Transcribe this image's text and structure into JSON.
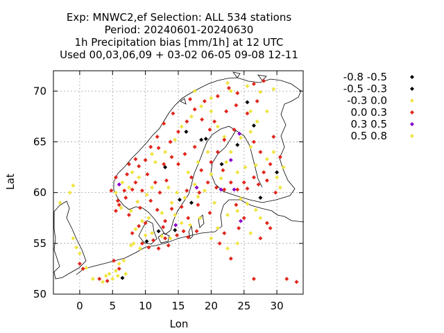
{
  "chart_data": {
    "type": "scatter",
    "title_lines": [
      "Exp: MNWC2,ef   Selection: ALL     534 stations",
      "Period: 20240601-20240630",
      "1h Precipitation bias [mm/1h] at  12 UTC",
      "Used 00,03,06,09 + 03-02 06-05 09-08 12-11"
    ],
    "xlabel": "Lon",
    "ylabel": "Lat",
    "xlim": [
      -4,
      34
    ],
    "ylim": [
      50,
      72
    ],
    "xticks": [
      "0",
      "5",
      "10",
      "15",
      "20",
      "25",
      "30"
    ],
    "yticks": [
      "50",
      "55",
      "60",
      "65",
      "70"
    ],
    "grid": true,
    "legend_position": "top-right",
    "legend": [
      {
        "label": "-0.8 -0.5",
        "color": "#000000"
      },
      {
        "label": "-0.5 -0.3",
        "color": "#000000"
      },
      {
        "label": "-0.3 0.0",
        "color": "#f0e442"
      },
      {
        "label": "0.0 0.3",
        "color": "#e1261c"
      },
      {
        "label": "0.3 0.5",
        "color": "#8b00c9"
      },
      {
        "label": "0.5 0.8",
        "color": "#f0e442"
      }
    ],
    "series": [
      {
        "name": "-0.8 -0.5",
        "color": "#000000",
        "points": [
          [
            16.2,
            66.0
          ],
          [
            18.5,
            65.2
          ],
          [
            26.5,
            66.6
          ],
          [
            25.5,
            68.9
          ],
          [
            24.0,
            64.7
          ],
          [
            13.0,
            62.5
          ],
          [
            30.0,
            62.0
          ],
          [
            6.5,
            51.6
          ]
        ]
      },
      {
        "name": "-0.5 -0.3",
        "color": "#000000",
        "points": [
          [
            14.5,
            56.3
          ],
          [
            15.2,
            59.3
          ],
          [
            17.0,
            59.0
          ],
          [
            21.6,
            62.8
          ],
          [
            19.2,
            65.3
          ],
          [
            27.5,
            59.5
          ],
          [
            12.0,
            56.2
          ],
          [
            10.2,
            55.2
          ]
        ]
      },
      {
        "name": "-0.3 0.0",
        "color": "#f0e442",
        "points": [
          [
            -1.5,
            60.0
          ],
          [
            -1.0,
            60.7
          ],
          [
            -3.0,
            59.0
          ],
          [
            -1.0,
            55.5
          ],
          [
            -0.5,
            54.6
          ],
          [
            0.0,
            54.0
          ],
          [
            1.0,
            52.6
          ],
          [
            4.5,
            52.0
          ],
          [
            5.0,
            51.5
          ],
          [
            5.5,
            52.3
          ],
          [
            6.0,
            53.0
          ],
          [
            6.7,
            53.3
          ],
          [
            5.8,
            51.8
          ],
          [
            3.5,
            51.2
          ],
          [
            8.2,
            55.0
          ],
          [
            8.5,
            56.4
          ],
          [
            9.5,
            57.2
          ],
          [
            10.5,
            57.5
          ],
          [
            11.0,
            56.0
          ],
          [
            12.5,
            55.7
          ],
          [
            6.3,
            58.5
          ],
          [
            7.8,
            58.2
          ],
          [
            8.8,
            59.1
          ],
          [
            10.2,
            59.8
          ],
          [
            11.0,
            60.5
          ],
          [
            9.0,
            61.5
          ],
          [
            8.0,
            62.0
          ],
          [
            11.5,
            63.0
          ],
          [
            13.0,
            64.0
          ],
          [
            14.5,
            65.2
          ],
          [
            15.5,
            66.5
          ],
          [
            17.0,
            67.5
          ],
          [
            18.5,
            68.5
          ],
          [
            20.0,
            69.3
          ],
          [
            23.0,
            70.0
          ],
          [
            25.5,
            70.5
          ],
          [
            27.5,
            69.9
          ],
          [
            29.5,
            70.2
          ],
          [
            16.0,
            59.5
          ],
          [
            17.5,
            60.8
          ],
          [
            18.0,
            59.6
          ],
          [
            19.0,
            60.2
          ],
          [
            14.5,
            57.8
          ],
          [
            15.5,
            57.0
          ],
          [
            13.8,
            55.5
          ],
          [
            16.8,
            56.8
          ],
          [
            18.3,
            57.5
          ],
          [
            20.5,
            59.0
          ],
          [
            21.5,
            61.4
          ],
          [
            22.3,
            63.0
          ],
          [
            23.0,
            64.0
          ],
          [
            24.5,
            65.4
          ],
          [
            26.0,
            66.0
          ],
          [
            27.0,
            67.0
          ],
          [
            28.5,
            68.0
          ],
          [
            25.2,
            62.5
          ],
          [
            26.8,
            62.7
          ],
          [
            28.5,
            63.3
          ],
          [
            29.5,
            64.0
          ],
          [
            30.0,
            61.5
          ],
          [
            31.0,
            62.5
          ],
          [
            21.0,
            56.5
          ],
          [
            22.5,
            57.8
          ],
          [
            24.0,
            58.2
          ],
          [
            25.5,
            58.9
          ],
          [
            26.8,
            58.3
          ],
          [
            24.5,
            59.4
          ],
          [
            27.5,
            57.5
          ],
          [
            26.0,
            56.0
          ],
          [
            24.0,
            55.0
          ],
          [
            22.5,
            54.5
          ],
          [
            20.0,
            68.0
          ],
          [
            21.0,
            66.5
          ],
          [
            22.0,
            65.5
          ],
          [
            19.5,
            64.0
          ],
          [
            18.0,
            63.0
          ],
          [
            16.5,
            62.0
          ],
          [
            6.5,
            61.0
          ],
          [
            5.5,
            60.0
          ],
          [
            7.5,
            60.5
          ],
          [
            12.5,
            58.0
          ],
          [
            13.5,
            60.5
          ],
          [
            14.0,
            59.0
          ],
          [
            20.0,
            55.5
          ],
          [
            10.0,
            55.8
          ],
          [
            9.2,
            54.5
          ],
          [
            7.0,
            52.0
          ],
          [
            2.0,
            51.5
          ],
          [
            30.5,
            60.5
          ],
          [
            24.0,
            62.0
          ],
          [
            26.0,
            64.5
          ]
        ]
      },
      {
        "name": "0.0 0.3",
        "color": "#e1261c",
        "points": [
          [
            0.0,
            53.0
          ],
          [
            0.5,
            52.5
          ],
          [
            3.0,
            51.5
          ],
          [
            4.2,
            51.3
          ],
          [
            6.0,
            52.5
          ],
          [
            5.2,
            53.3
          ],
          [
            8.0,
            56.0
          ],
          [
            9.0,
            56.7
          ],
          [
            10.0,
            57.0
          ],
          [
            9.5,
            55.0
          ],
          [
            10.5,
            54.6
          ],
          [
            12.0,
            54.5
          ],
          [
            13.5,
            54.8
          ],
          [
            6.0,
            58.8
          ],
          [
            7.0,
            59.5
          ],
          [
            8.0,
            60.3
          ],
          [
            9.5,
            60.2
          ],
          [
            10.8,
            59.2
          ],
          [
            11.5,
            61.0
          ],
          [
            7.2,
            61.8
          ],
          [
            9.0,
            62.6
          ],
          [
            10.0,
            63.2
          ],
          [
            12.0,
            64.4
          ],
          [
            13.8,
            65.0
          ],
          [
            15.0,
            66.0
          ],
          [
            16.3,
            67.0
          ],
          [
            17.5,
            68.2
          ],
          [
            19.0,
            69.0
          ],
          [
            21.0,
            69.5
          ],
          [
            24.0,
            69.8
          ],
          [
            26.5,
            70.7
          ],
          [
            28.0,
            71.0
          ],
          [
            14.0,
            58.4
          ],
          [
            15.5,
            58.6
          ],
          [
            16.5,
            57.5
          ],
          [
            18.0,
            58.8
          ],
          [
            17.0,
            61.5
          ],
          [
            19.5,
            61.0
          ],
          [
            18.5,
            62.2
          ],
          [
            20.0,
            63.0
          ],
          [
            21.0,
            64.0
          ],
          [
            22.0,
            65.2
          ],
          [
            23.5,
            66.2
          ],
          [
            20.5,
            67.0
          ],
          [
            22.3,
            68.0
          ],
          [
            23.8,
            68.6
          ],
          [
            25.5,
            67.8
          ],
          [
            26.5,
            65.0
          ],
          [
            27.5,
            64.0
          ],
          [
            28.0,
            62.0
          ],
          [
            29.0,
            62.8
          ],
          [
            25.0,
            61.0
          ],
          [
            26.5,
            61.5
          ],
          [
            23.0,
            61.0
          ],
          [
            22.0,
            60.3
          ],
          [
            24.0,
            60.3
          ],
          [
            25.5,
            60.4
          ],
          [
            27.2,
            60.8
          ],
          [
            28.5,
            61.2
          ],
          [
            23.8,
            58.8
          ],
          [
            25.0,
            57.5
          ],
          [
            24.2,
            56.5
          ],
          [
            22.0,
            56.0
          ],
          [
            21.3,
            55.0
          ],
          [
            23.0,
            53.5
          ],
          [
            26.5,
            51.5
          ],
          [
            31.5,
            51.5
          ],
          [
            33.0,
            51.2
          ],
          [
            28.5,
            57.0
          ],
          [
            27.5,
            55.5
          ],
          [
            29.0,
            56.5
          ],
          [
            15.0,
            62.8
          ],
          [
            14.0,
            63.5
          ],
          [
            16.0,
            63.8
          ],
          [
            17.5,
            64.5
          ],
          [
            13.2,
            61.2
          ],
          [
            12.2,
            60.0
          ],
          [
            5.8,
            59.2
          ],
          [
            6.8,
            60.2
          ],
          [
            8.5,
            61.0
          ],
          [
            10.3,
            61.8
          ],
          [
            12.8,
            62.8
          ],
          [
            11.8,
            58.3
          ],
          [
            13.0,
            57.2
          ],
          [
            15.8,
            56.2
          ],
          [
            14.8,
            55.8
          ],
          [
            11.2,
            55.3
          ],
          [
            12.7,
            56.6
          ],
          [
            18.6,
            67.2
          ],
          [
            19.8,
            66.2
          ],
          [
            21.8,
            62.2
          ],
          [
            29.5,
            65.5
          ],
          [
            27.0,
            69.0
          ],
          [
            22.7,
            70.3
          ],
          [
            16.8,
            69.2
          ],
          [
            14.2,
            67.8
          ],
          [
            12.8,
            66.8
          ],
          [
            11.8,
            65.5
          ],
          [
            10.8,
            64.5
          ],
          [
            8.5,
            63.3
          ],
          [
            7.5,
            62.8
          ],
          [
            5.5,
            61.5
          ],
          [
            4.8,
            60.2
          ],
          [
            5.5,
            58.2
          ],
          [
            7.5,
            57.8
          ],
          [
            9.2,
            58.5
          ],
          [
            16.3,
            60.2
          ],
          [
            18.2,
            60.0
          ],
          [
            20.8,
            60.5
          ],
          [
            19.8,
            58.0
          ],
          [
            17.8,
            56.2
          ],
          [
            16.5,
            55.6
          ],
          [
            13.0,
            55.5
          ],
          [
            30.5,
            63.5
          ],
          [
            29.8,
            60.0
          ]
        ]
      },
      {
        "name": "0.3 0.5",
        "color": "#8b00c9",
        "points": [
          [
            6.0,
            60.8
          ],
          [
            14.6,
            56.8
          ],
          [
            21.5,
            60.3
          ],
          [
            23.5,
            60.3
          ],
          [
            24.5,
            57.2
          ],
          [
            24.3,
            65.8
          ],
          [
            23.0,
            63.2
          ],
          [
            17.8,
            60.5
          ]
        ]
      },
      {
        "name": "0.5 0.8",
        "color": "#f0e442",
        "points": [
          [
            22.5,
            70.8
          ],
          [
            17.5,
            70.0
          ],
          [
            26.0,
            68.0
          ],
          [
            11.0,
            63.8
          ],
          [
            14.8,
            60.0
          ],
          [
            20.0,
            61.8
          ],
          [
            7.8,
            54.8
          ],
          [
            4.0,
            51.8
          ]
        ]
      }
    ]
  }
}
